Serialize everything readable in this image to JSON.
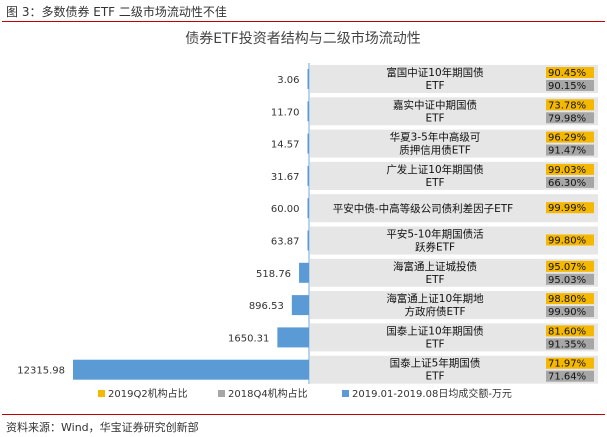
{
  "figure_title": "图 3：多数债券 ETF 二级市场流动性不佳",
  "source_note": "资料来源：Wind，华宝证券研究创新部",
  "colors": {
    "q2": "#f5b800",
    "q4": "#a6a6a6",
    "volume": "#5b9bd5",
    "row_bg": "#e6e6e6",
    "rule": "#c00000"
  },
  "chart_data": {
    "type": "bar",
    "title": "债券ETF投资者结构与二级市场流动性",
    "categories": [
      [
        "富国中证10年期国债",
        "ETF"
      ],
      [
        "嘉实中证中期国债",
        "ETF"
      ],
      [
        "华夏3-5年中高级可",
        "质押信用债ETF"
      ],
      [
        "广发上证10年期国债",
        "ETF"
      ],
      [
        "平安中债-中高等级公司债利差因子ETF"
      ],
      [
        "平安5-10年期国债活",
        "跃券ETF"
      ],
      [
        "海富通上证城投债",
        "ETF"
      ],
      [
        "海富通上证10年期地",
        "方政府债ETF"
      ],
      [
        "国泰上证10年期国债",
        "ETF"
      ],
      [
        "国泰上证5年期国债",
        "ETF"
      ]
    ],
    "series": [
      {
        "name": "2019.01-2019.08日均成交额-万元",
        "values": [
          3.06,
          11.7,
          14.57,
          31.67,
          60.0,
          63.87,
          518.76,
          896.53,
          1650.31,
          12315.98
        ],
        "labels": [
          "3.06",
          "11.70",
          "14.57",
          "31.67",
          "60.00",
          "63.87",
          "518.76",
          "896.53",
          "1650.31",
          "12315.98"
        ]
      },
      {
        "name": "2019Q2机构占比",
        "values": [
          90.45,
          73.78,
          96.29,
          99.03,
          99.99,
          99.8,
          95.07,
          98.8,
          81.6,
          71.97
        ],
        "labels": [
          "90.45%",
          "73.78%",
          "96.29%",
          "99.03%",
          "99.99%",
          "99.80%",
          "95.07%",
          "98.80%",
          "81.60%",
          "71.97%"
        ]
      },
      {
        "name": "2018Q4机构占比",
        "values": [
          90.15,
          79.98,
          91.47,
          66.3,
          null,
          null,
          95.03,
          99.9,
          91.35,
          71.64
        ],
        "labels": [
          "90.15%",
          "79.98%",
          "91.47%",
          "66.30%",
          "",
          "",
          "95.03%",
          "99.90%",
          "91.35%",
          "71.64%"
        ]
      }
    ],
    "legend": {
      "position": "bottom",
      "items": [
        "2019Q2机构占比",
        "2018Q4机构占比",
        "2019.01-2019.08日均成交额-万元"
      ]
    },
    "grid": false
  }
}
